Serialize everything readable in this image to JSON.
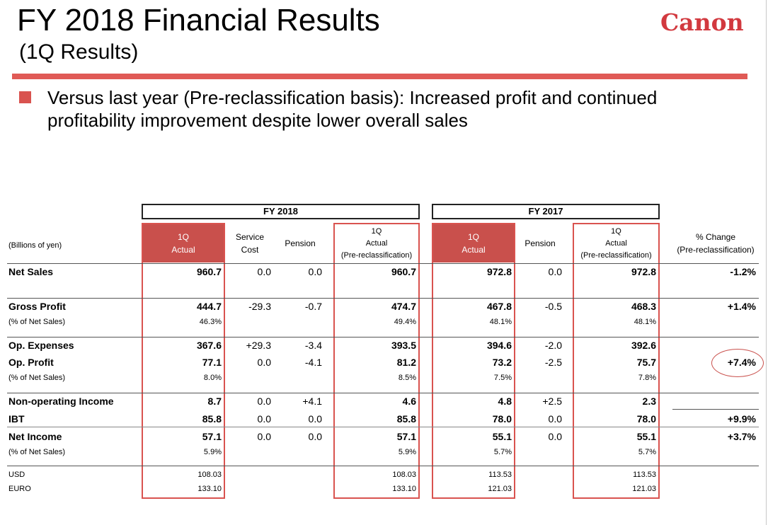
{
  "header": {
    "title": "FY 2018 Financial Results",
    "subtitle": "(1Q Results)",
    "logo_text": "Canon"
  },
  "bullet": "Versus last year (Pre-reclassification basis): Increased profit and continued profitability improvement despite lower overall sales",
  "table": {
    "unit_label": "(Billions of yen)",
    "group_fy2018": "FY 2018",
    "group_fy2017": "FY 2017",
    "columns": {
      "c1": [
        "1Q",
        "Actual"
      ],
      "c2": [
        "Service",
        "Cost"
      ],
      "c3": [
        "Pension"
      ],
      "c4": [
        "1Q",
        "Actual",
        "(Pre-reclassification)"
      ],
      "c5": [
        "1Q",
        "Actual"
      ],
      "c6": [
        "Pension"
      ],
      "c7": [
        "1Q",
        "Actual",
        "(Pre-reclassification)"
      ],
      "c8": [
        "% Change",
        "(Pre-reclassification)"
      ]
    },
    "rows": {
      "net_sales": {
        "label": "Net Sales",
        "c1": "960.7",
        "c2": "0.0",
        "c3": "0.0",
        "c4": "960.7",
        "c5": "972.8",
        "c6": "0.0",
        "c7": "972.8",
        "c8": "-1.2%"
      },
      "gross_profit": {
        "label": "Gross Profit",
        "c1": "444.7",
        "c2": "-29.3",
        "c3": "-0.7",
        "c4": "474.7",
        "c5": "467.8",
        "c6": "-0.5",
        "c7": "468.3",
        "c8": "+1.4%"
      },
      "gross_profit_pct": {
        "label": "(% of Net Sales)",
        "c1": "46.3%",
        "c4": "49.4%",
        "c5": "48.1%",
        "c7": "48.1%"
      },
      "op_expenses": {
        "label": "Op. Expenses",
        "c1": "367.6",
        "c2": "+29.3",
        "c3": "-3.4",
        "c4": "393.5",
        "c5": "394.6",
        "c6": "-2.0",
        "c7": "392.6"
      },
      "op_profit": {
        "label": "Op. Profit",
        "c1": "77.1",
        "c2": "0.0",
        "c3": "-4.1",
        "c4": "81.2",
        "c5": "73.2",
        "c6": "-2.5",
        "c7": "75.7",
        "c8": "+7.4%"
      },
      "op_profit_pct": {
        "label": "(% of Net Sales)",
        "c1": "8.0%",
        "c4": "8.5%",
        "c5": "7.5%",
        "c7": "7.8%"
      },
      "non_op": {
        "label": "Non-operating Income",
        "c1": "8.7",
        "c2": "0.0",
        "c3": "+4.1",
        "c4": "4.6",
        "c5": "4.8",
        "c6": "+2.5",
        "c7": "2.3"
      },
      "ibt": {
        "label": "IBT",
        "c1": "85.8",
        "c2": "0.0",
        "c3": "0.0",
        "c4": "85.8",
        "c5": "78.0",
        "c6": "0.0",
        "c7": "78.0",
        "c8": "+9.9%"
      },
      "net_income": {
        "label": "Net Income",
        "c1": "57.1",
        "c2": "0.0",
        "c3": "0.0",
        "c4": "57.1",
        "c5": "55.1",
        "c6": "0.0",
        "c7": "55.1",
        "c8": "+3.7%"
      },
      "net_income_pct": {
        "label": "(% of Net Sales)",
        "c1": "5.9%",
        "c4": "5.9%",
        "c5": "5.7%",
        "c7": "5.7%"
      },
      "usd": {
        "label": "USD",
        "c1": "108.03",
        "c4": "108.03",
        "c5": "113.53",
        "c7": "113.53"
      },
      "euro": {
        "label": "EURO",
        "c1": "133.10",
        "c4": "133.10",
        "c5": "121.03",
        "c7": "121.03"
      }
    }
  },
  "colors": {
    "accent": "#d9534f",
    "header_fill": "#c9504c",
    "logo": "#d2393f"
  }
}
